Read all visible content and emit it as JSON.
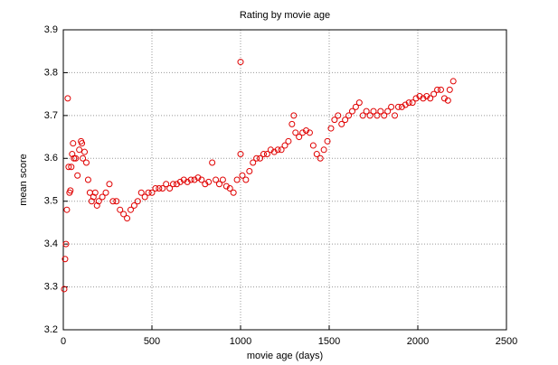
{
  "chart_data": {
    "type": "scatter",
    "title": "Rating by movie age",
    "xlabel": "movie age (days)",
    "ylabel": "mean score",
    "xlim": [
      0,
      2500
    ],
    "ylim": [
      3.2,
      3.9
    ],
    "xticks": [
      0,
      500,
      1000,
      1500,
      2000,
      2500
    ],
    "yticks": [
      3.2,
      3.3,
      3.4,
      3.5,
      3.6,
      3.7,
      3.8,
      3.9
    ],
    "grid": true,
    "color": "#e00000",
    "x": [
      5,
      10,
      15,
      20,
      25,
      30,
      35,
      40,
      45,
      50,
      55,
      60,
      70,
      80,
      90,
      100,
      105,
      110,
      120,
      130,
      140,
      150,
      160,
      170,
      180,
      190,
      200,
      220,
      240,
      260,
      280,
      300,
      320,
      340,
      360,
      380,
      400,
      420,
      440,
      460,
      480,
      500,
      520,
      540,
      560,
      580,
      600,
      620,
      640,
      660,
      680,
      700,
      720,
      740,
      760,
      780,
      800,
      820,
      840,
      860,
      880,
      900,
      920,
      940,
      960,
      980,
      1000,
      1000,
      1010,
      1030,
      1050,
      1070,
      1090,
      1110,
      1130,
      1150,
      1170,
      1190,
      1210,
      1230,
      1250,
      1270,
      1290,
      1300,
      1310,
      1330,
      1350,
      1370,
      1390,
      1410,
      1430,
      1450,
      1470,
      1490,
      1510,
      1530,
      1550,
      1570,
      1590,
      1610,
      1630,
      1650,
      1670,
      1690,
      1710,
      1730,
      1750,
      1770,
      1790,
      1810,
      1830,
      1850,
      1870,
      1890,
      1910,
      1930,
      1950,
      1970,
      1990,
      2010,
      2030,
      2050,
      2070,
      2090,
      2110,
      2130,
      2150,
      2170,
      2180,
      2200
    ],
    "values": [
      3.295,
      3.365,
      3.4,
      3.48,
      3.74,
      3.58,
      3.52,
      3.525,
      3.58,
      3.61,
      3.635,
      3.6,
      3.6,
      3.56,
      3.62,
      3.64,
      3.635,
      3.6,
      3.615,
      3.59,
      3.55,
      3.52,
      3.5,
      3.51,
      3.52,
      3.49,
      3.5,
      3.51,
      3.52,
      3.54,
      3.5,
      3.5,
      3.48,
      3.47,
      3.46,
      3.48,
      3.49,
      3.5,
      3.52,
      3.51,
      3.52,
      3.52,
      3.53,
      3.53,
      3.53,
      3.54,
      3.53,
      3.54,
      3.54,
      3.545,
      3.55,
      3.545,
      3.55,
      3.55,
      3.555,
      3.55,
      3.54,
      3.545,
      3.59,
      3.55,
      3.54,
      3.55,
      3.535,
      3.53,
      3.52,
      3.55,
      3.825,
      3.61,
      3.56,
      3.55,
      3.57,
      3.59,
      3.6,
      3.6,
      3.61,
      3.61,
      3.62,
      3.615,
      3.62,
      3.62,
      3.63,
      3.64,
      3.68,
      3.7,
      3.66,
      3.65,
      3.66,
      3.665,
      3.66,
      3.63,
      3.61,
      3.6,
      3.62,
      3.64,
      3.67,
      3.69,
      3.7,
      3.68,
      3.69,
      3.7,
      3.71,
      3.72,
      3.73,
      3.7,
      3.71,
      3.7,
      3.71,
      3.7,
      3.71,
      3.7,
      3.71,
      3.72,
      3.7,
      3.72,
      3.72,
      3.725,
      3.73,
      3.73,
      3.74,
      3.745,
      3.74,
      3.745,
      3.74,
      3.75,
      3.76,
      3.76,
      3.74,
      3.735,
      3.76,
      3.78
    ]
  }
}
